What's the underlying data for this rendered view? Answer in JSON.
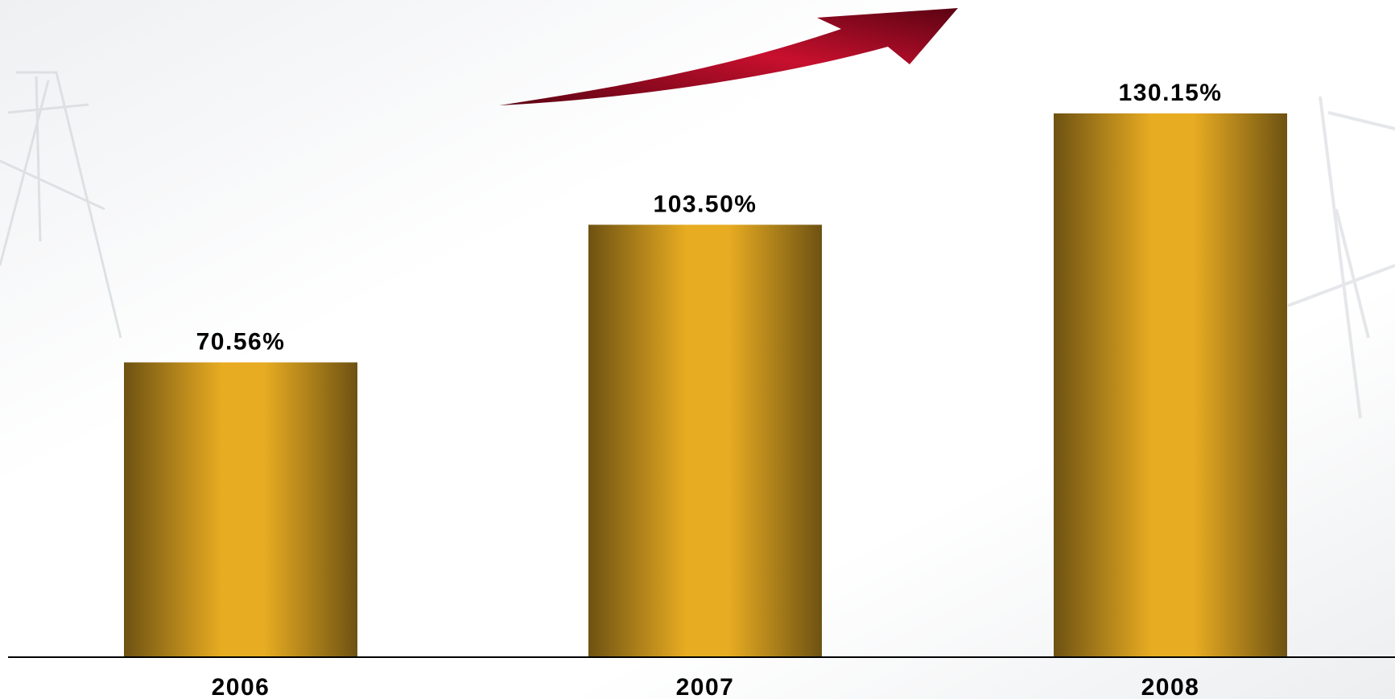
{
  "chart_data": {
    "type": "bar",
    "categories": [
      "2006",
      "2007",
      "2008"
    ],
    "values": [
      70.56,
      103.5,
      130.15
    ],
    "value_labels": [
      "70.56%",
      "103.50%",
      "130.15%"
    ],
    "unit": "%",
    "ylim": [
      0,
      130.15
    ],
    "grid": false,
    "legend": "none",
    "colors": {
      "bar_center": "#E8AC22",
      "bar_edge": "#6E5212",
      "arrow_dark": "#5A0312",
      "arrow_light": "#C8102E",
      "axis": "#000000"
    },
    "annotation": "upward trend arrow"
  }
}
